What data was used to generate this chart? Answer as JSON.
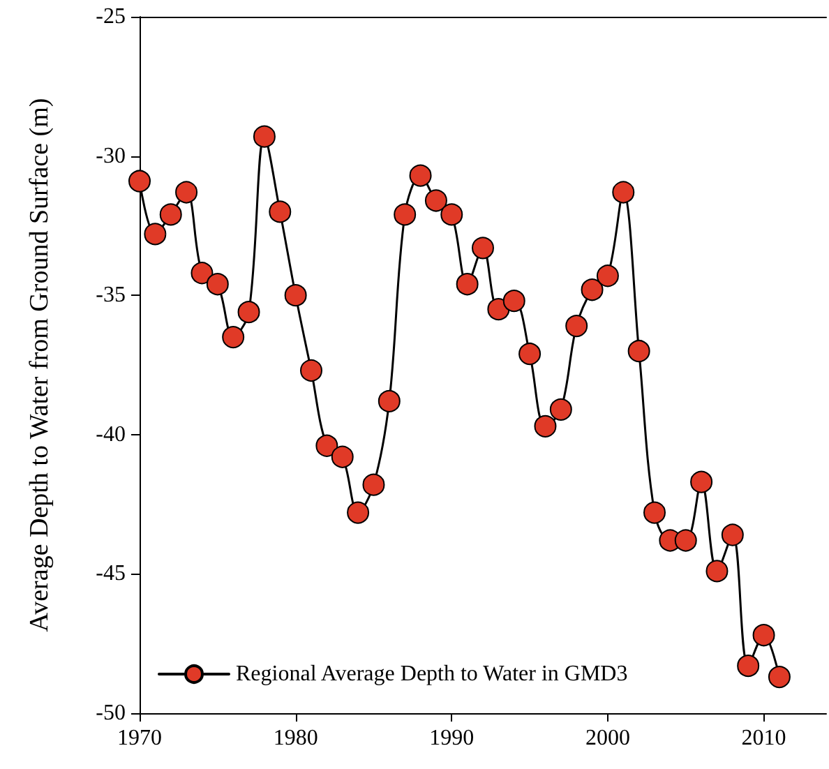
{
  "chart_data": {
    "type": "line",
    "ylabel": "Average Depth to Water from Ground Surface (m)",
    "x": [
      1970,
      1971,
      1972,
      1973,
      1974,
      1975,
      1976,
      1977,
      1978,
      1979,
      1980,
      1981,
      1982,
      1983,
      1984,
      1985,
      1986,
      1987,
      1988,
      1989,
      1990,
      1991,
      1992,
      1993,
      1994,
      1995,
      1996,
      1997,
      1998,
      1999,
      2000,
      2001,
      2002,
      2003,
      2004,
      2005,
      2006,
      2007,
      2008,
      2009,
      2010,
      2011
    ],
    "series": [
      {
        "name": "Regional Average Depth to Water in GMD3",
        "color": "#e03a27",
        "values": [
          -30.9,
          -32.8,
          -32.1,
          -31.3,
          -34.2,
          -34.6,
          -36.5,
          -35.6,
          -29.3,
          -32.0,
          -35.0,
          -37.7,
          -40.4,
          -40.8,
          -42.8,
          -41.8,
          -38.8,
          -32.1,
          -30.7,
          -31.6,
          -32.1,
          -34.6,
          -33.3,
          -35.5,
          -35.2,
          -37.1,
          -39.7,
          -39.1,
          -36.1,
          -34.8,
          -34.3,
          -31.3,
          -37.0,
          -42.8,
          -43.8,
          -43.8,
          -41.7,
          -44.9,
          -43.6,
          -48.3,
          -47.2,
          -48.7
        ]
      }
    ],
    "xlim": [
      1970,
      2014
    ],
    "xticks": [
      1970,
      1980,
      1990,
      2000,
      2010
    ],
    "ylim": [
      -50,
      -25
    ],
    "yticks": [
      -50,
      -45,
      -40,
      -35,
      -30,
      -25
    ],
    "grid": false,
    "legend": "bottom left",
    "marker": "circle",
    "line_style": "solid"
  }
}
